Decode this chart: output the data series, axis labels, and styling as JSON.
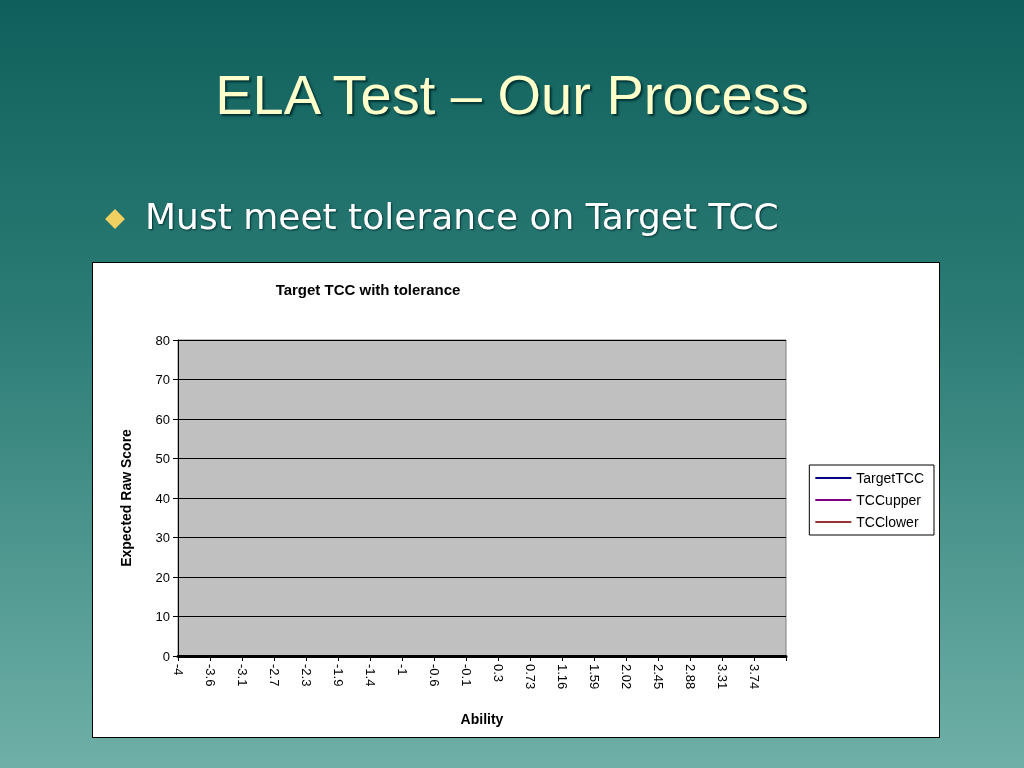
{
  "chart_data": {
    "type": "line",
    "title": "Target TCC with tolerance",
    "xlabel": "Ability",
    "ylabel": "Expected Raw Score",
    "annotations": [
      "ELA Test – Our Process",
      "Must meet tolerance on Target TCC"
    ],
    "categories": [
      "-4",
      "-3.6",
      "-3.1",
      "-2.7",
      "-2.3",
      "-1.9",
      "-1.4",
      "-1",
      "-0.6",
      "-0.1",
      "0.3",
      "0.73",
      "1.16",
      "1.59",
      "2.02",
      "2.45",
      "2.88",
      "3.31",
      "3.74",
      null
    ],
    "series": [
      {
        "name": "TargetTCC",
        "color": "#000080",
        "values": [
          null,
          null,
          null,
          null,
          null,
          null,
          null,
          null,
          null,
          null,
          null,
          null,
          null,
          null,
          null,
          null,
          null,
          null,
          null,
          null
        ]
      },
      {
        "name": "TCCupper",
        "color": "#800080",
        "values": [
          null,
          null,
          null,
          null,
          null,
          null,
          null,
          null,
          null,
          null,
          null,
          null,
          null,
          null,
          null,
          null,
          null,
          null,
          null,
          null
        ]
      },
      {
        "name": "TCClower",
        "color": "#993333",
        "values": [
          null,
          null,
          null,
          null,
          null,
          null,
          null,
          null,
          null,
          null,
          null,
          null,
          null,
          null,
          null,
          null,
          null,
          null,
          null,
          null
        ]
      }
    ],
    "ylim": [
      0,
      80
    ],
    "yticks": [
      0,
      10,
      20,
      30,
      40,
      50,
      60,
      70,
      80
    ],
    "grid": "y",
    "legend": "right"
  }
}
